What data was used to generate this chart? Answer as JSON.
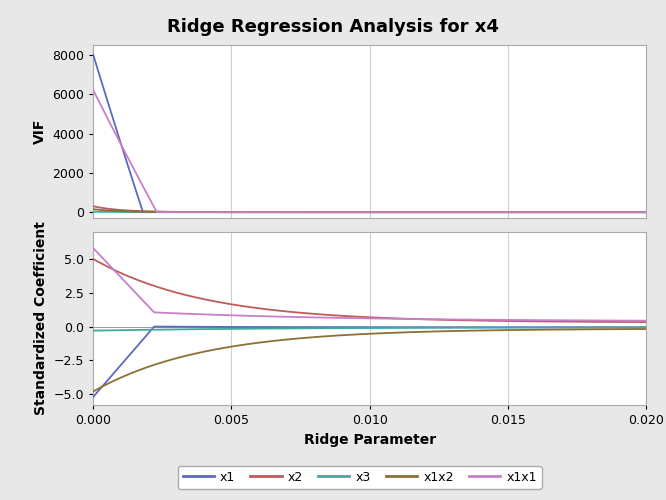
{
  "title": "Ridge Regression Analysis for x4",
  "xlabel": "Ridge Parameter",
  "ylabel_top": "VIF",
  "ylabel_bottom": "Standardized Coefficient",
  "xlim": [
    0.0,
    0.02
  ],
  "x_ticks": [
    0.0,
    0.005,
    0.01,
    0.015,
    0.02
  ],
  "vif_yticks": [
    0,
    2000,
    4000,
    6000,
    8000
  ],
  "coef_yticks": [
    -5.0,
    -2.5,
    0.0,
    2.5,
    5.0
  ],
  "legend_labels": [
    "x1",
    "x2",
    "x3",
    "x1x2",
    "x1x1"
  ],
  "line_colors": {
    "x1": "#5b6abf",
    "x2": "#bf5b5b",
    "x3": "#3aada0",
    "x1x2": "#8b7035",
    "x1x1": "#c87fc8"
  },
  "fig_bg": "#e8e8e8",
  "axes_bg": "#ffffff",
  "grid_color": "#d0d0d0",
  "spine_color": "#aaaaaa",
  "n_points": 500,
  "ridge_max": 0.02
}
